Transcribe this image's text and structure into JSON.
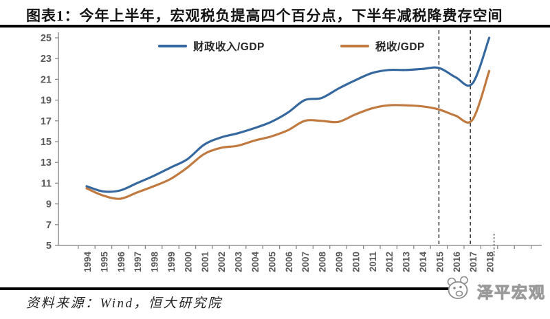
{
  "header": {
    "title": "图表1：今年上半年，宏观税负提高四个百分点，下半年减税降费存空间"
  },
  "chart_data": {
    "type": "line",
    "x": [
      1994,
      1995,
      1996,
      1997,
      1998,
      1999,
      2000,
      2001,
      2002,
      2003,
      2004,
      2005,
      2006,
      2007,
      2008,
      2009,
      2010,
      2011,
      2012,
      2013,
      2014,
      2015,
      2016,
      2017,
      2018
    ],
    "series": [
      {
        "name": "财政收入/GDP",
        "color": "#35689E",
        "values": [
          10.7,
          10.2,
          10.3,
          11.0,
          11.7,
          12.5,
          13.3,
          14.7,
          15.4,
          15.8,
          16.3,
          16.9,
          17.8,
          19.0,
          19.2,
          20.1,
          20.9,
          21.6,
          21.9,
          21.9,
          22.0,
          22.1,
          21.2,
          20.6,
          25.0
        ]
      },
      {
        "name": "税收/GDP",
        "color": "#C07A40",
        "values": [
          10.5,
          9.8,
          9.5,
          10.1,
          10.7,
          11.4,
          12.5,
          13.8,
          14.4,
          14.6,
          15.1,
          15.5,
          16.1,
          17.0,
          17.0,
          16.9,
          17.6,
          18.2,
          18.5,
          18.5,
          18.4,
          18.1,
          17.5,
          17.1,
          21.8
        ]
      }
    ],
    "ylim": [
      5,
      25
    ],
    "yticks": [
      5,
      7,
      9,
      11,
      13,
      15,
      17,
      19,
      21,
      23,
      25
    ],
    "xlabel": "",
    "ylabel": "",
    "grid": false,
    "legend_position": "top",
    "annotations": {
      "dashed_vlines_years": [
        2015,
        2017
      ],
      "partial_year_marker_year": 2018
    }
  },
  "style": {
    "axis_color": "#808080",
    "tick_label_color": "#595959",
    "dashed_line_color": "#3d3d3d"
  },
  "footer": {
    "source": "资料来源：Wind，恒大研究院",
    "logo_text": "泽平宏观"
  },
  "icons": {
    "logo": "panda-face"
  }
}
